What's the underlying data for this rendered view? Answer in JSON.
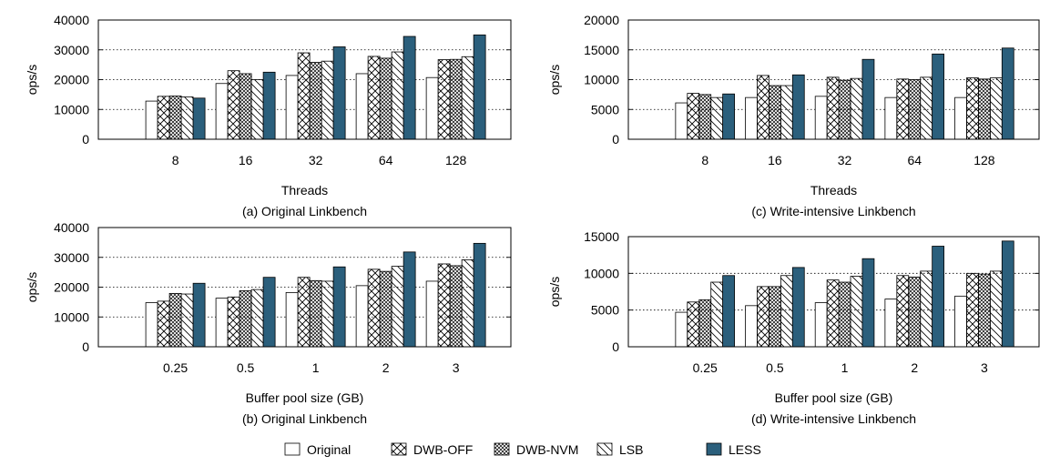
{
  "series_names": [
    "Original",
    "DWB-OFF",
    "DWB-NVM",
    "LSB",
    "LESS"
  ],
  "patterns": [
    "blank",
    "diag-cross",
    "fine-cross",
    "diag-right",
    "solid"
  ],
  "colors": {
    "less": "#2b5f7c",
    "stroke": "#000000",
    "fill": "#ffffff",
    "grid": "#000000"
  },
  "chart_data": [
    {
      "type": "bar",
      "caption": "(a) Original Linkbench",
      "xlabel": "Threads",
      "ylabel": "ops/s",
      "categories": [
        "8",
        "16",
        "32",
        "64",
        "128"
      ],
      "ylim": [
        0,
        40000
      ],
      "yticks": [
        0,
        10000,
        20000,
        30000,
        40000
      ],
      "grid": "horizontal dotted",
      "series": [
        {
          "name": "Original",
          "values": [
            12800,
            18700,
            21400,
            22000,
            20700
          ]
        },
        {
          "name": "DWB-OFF",
          "values": [
            14400,
            23000,
            29000,
            27800,
            26700
          ]
        },
        {
          "name": "DWB-NVM",
          "values": [
            14500,
            22000,
            25800,
            27200,
            26800
          ]
        },
        {
          "name": "LSB",
          "values": [
            14200,
            20000,
            26200,
            29300,
            27700
          ]
        },
        {
          "name": "LESS",
          "values": [
            13800,
            22500,
            31000,
            34500,
            35000
          ]
        }
      ]
    },
    {
      "type": "bar",
      "caption": "(c) Write-intensive Linkbench",
      "xlabel": "Threads",
      "ylabel": "ops/s",
      "categories": [
        "8",
        "16",
        "32",
        "64",
        "128"
      ],
      "ylim": [
        0,
        20000
      ],
      "yticks": [
        0,
        5000,
        10000,
        15000,
        20000
      ],
      "grid": "horizontal dotted",
      "series": [
        {
          "name": "Original",
          "values": [
            6100,
            7000,
            7200,
            7000,
            7000
          ]
        },
        {
          "name": "DWB-OFF",
          "values": [
            7700,
            10700,
            10400,
            10100,
            10300
          ]
        },
        {
          "name": "DWB-NVM",
          "values": [
            7500,
            9000,
            9900,
            10000,
            10100
          ]
        },
        {
          "name": "LSB",
          "values": [
            7000,
            9000,
            10200,
            10400,
            10300
          ]
        },
        {
          "name": "LESS",
          "values": [
            7600,
            10800,
            13400,
            14300,
            15300
          ]
        }
      ]
    },
    {
      "type": "bar",
      "caption": "(b) Original Linkbench",
      "xlabel": "Buffer pool size (GB)",
      "ylabel": "ops/s",
      "categories": [
        "0.25",
        "0.5",
        "1",
        "2",
        "3"
      ],
      "ylim": [
        0,
        40000
      ],
      "yticks": [
        0,
        10000,
        20000,
        30000,
        40000
      ],
      "grid": "horizontal dotted",
      "series": [
        {
          "name": "Original",
          "values": [
            14800,
            16300,
            18200,
            20500,
            22000
          ]
        },
        {
          "name": "DWB-OFF",
          "values": [
            15300,
            16700,
            23300,
            26000,
            27800
          ]
        },
        {
          "name": "DWB-NVM",
          "values": [
            17900,
            18800,
            22200,
            25300,
            27200
          ]
        },
        {
          "name": "LSB",
          "values": [
            17700,
            19200,
            22000,
            27000,
            29200
          ]
        },
        {
          "name": "LESS",
          "values": [
            21300,
            23300,
            26800,
            31800,
            34700
          ]
        }
      ]
    },
    {
      "type": "bar",
      "caption": "(d) Write-intensive Linkbench",
      "xlabel": "Buffer pool size (GB)",
      "ylabel": "ops/s",
      "categories": [
        "0.25",
        "0.5",
        "1",
        "2",
        "3"
      ],
      "ylim": [
        0,
        15000
      ],
      "yticks": [
        0,
        5000,
        10000,
        15000
      ],
      "grid": "horizontal dotted",
      "series": [
        {
          "name": "Original",
          "values": [
            4700,
            5600,
            6000,
            6500,
            6900
          ]
        },
        {
          "name": "DWB-OFF",
          "values": [
            6100,
            8200,
            9100,
            9700,
            10000
          ]
        },
        {
          "name": "DWB-NVM",
          "values": [
            6400,
            8200,
            8800,
            9500,
            9900
          ]
        },
        {
          "name": "LSB",
          "values": [
            8800,
            9700,
            9600,
            10300,
            10300
          ]
        },
        {
          "name": "LESS",
          "values": [
            9700,
            10800,
            12000,
            13700,
            14400
          ]
        }
      ]
    }
  ]
}
